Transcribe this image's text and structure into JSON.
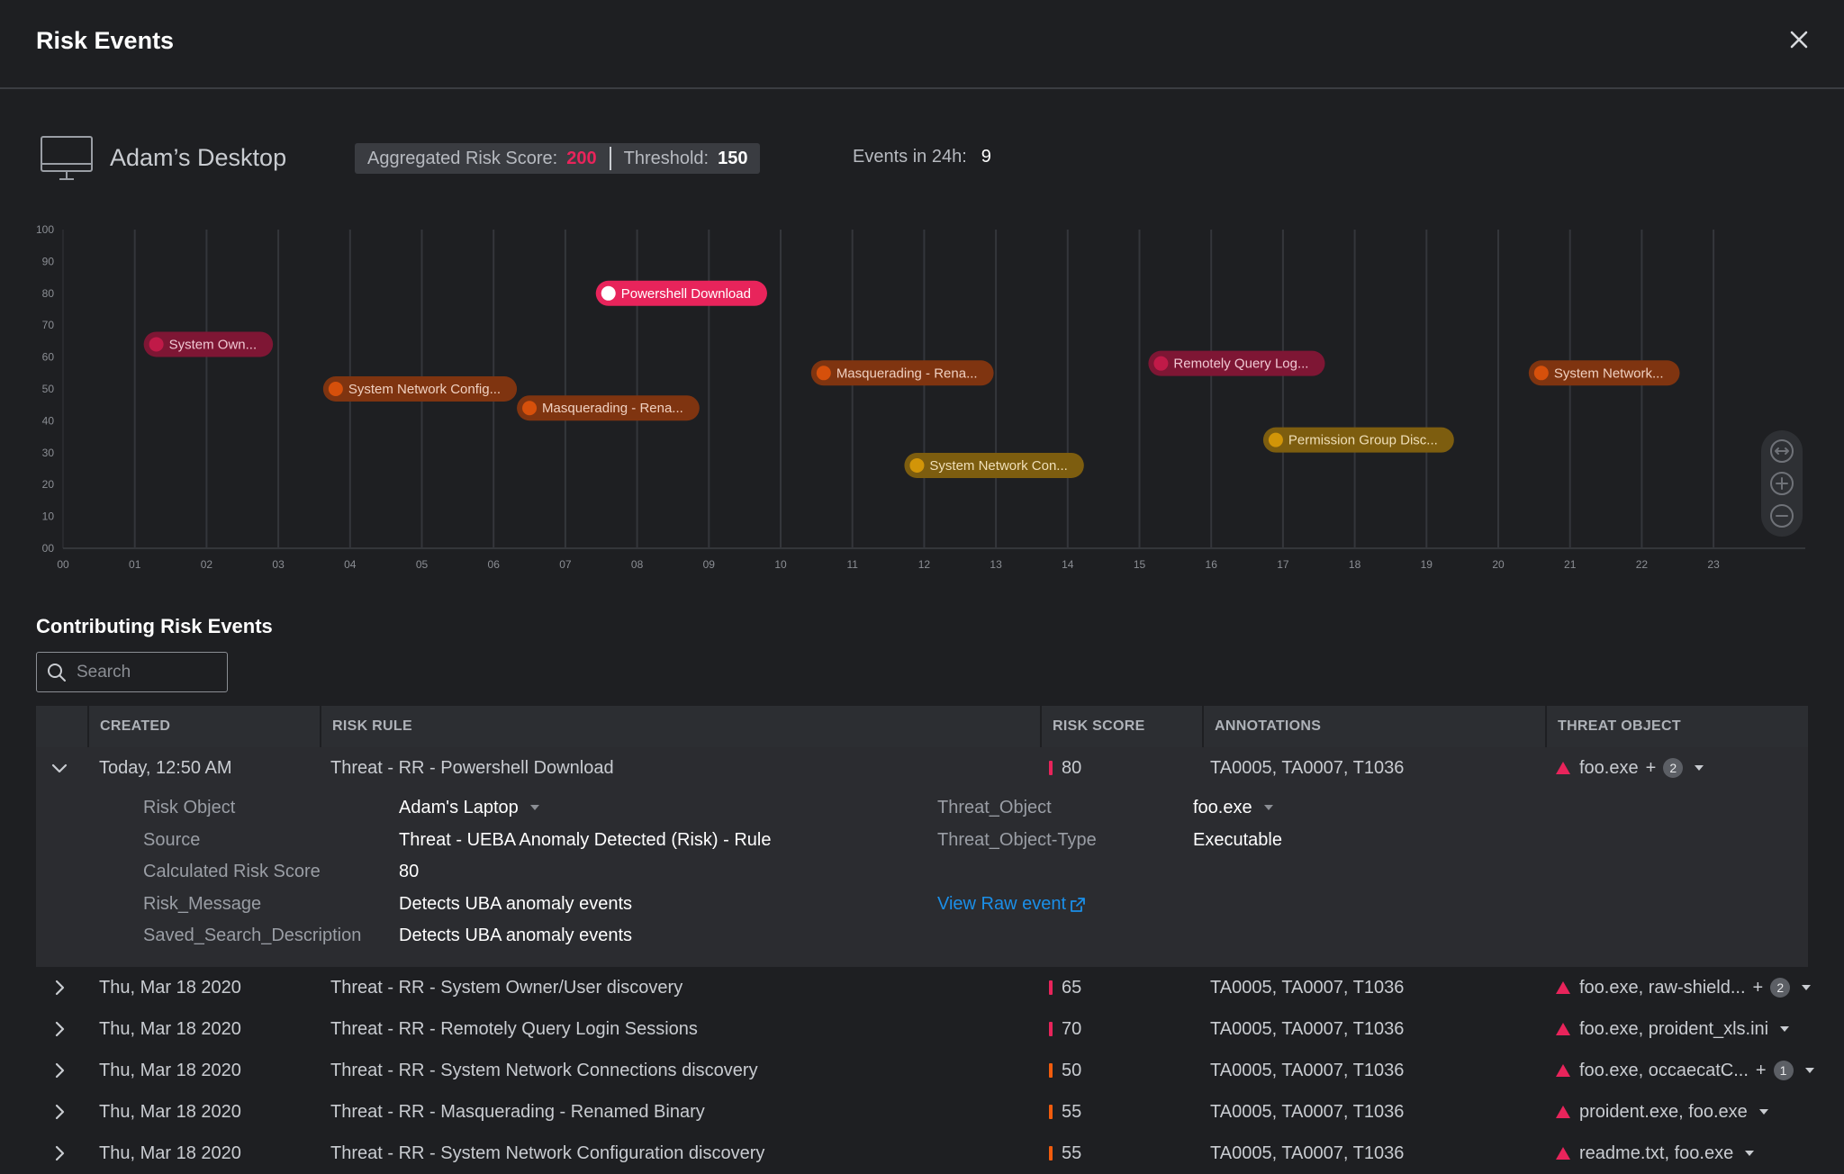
{
  "header": {
    "title": "Risk Events"
  },
  "asset": {
    "name": "Adam’s Desktop"
  },
  "score": {
    "aggregated_label": "Aggregated Risk Score:",
    "aggregated_value": "200",
    "threshold_label": "Threshold:",
    "threshold_value": "150",
    "events_label": "Events in 24h:",
    "events_value": "9"
  },
  "colors": {
    "critical": "#e8245b",
    "high": "#f25c0d",
    "medium": "#f5a70f",
    "link": "#1b8fe8"
  },
  "chart_data": {
    "type": "scatter",
    "x_ticks": [
      "00",
      "01",
      "02",
      "03",
      "04",
      "05",
      "06",
      "07",
      "08",
      "09",
      "10",
      "11",
      "12",
      "13",
      "14",
      "15",
      "16",
      "17",
      "18",
      "19",
      "20",
      "21",
      "22",
      "23"
    ],
    "y_ticks": [
      "00",
      "10",
      "20",
      "30",
      "40",
      "50",
      "60",
      "70",
      "80",
      "90",
      "100"
    ],
    "xlim": [
      0,
      24
    ],
    "ylim": [
      0,
      100
    ],
    "grid": true,
    "points": [
      {
        "label": "System Own...",
        "x": 1.3,
        "y": 64,
        "severity": "critical",
        "selected": false
      },
      {
        "label": "System Network Config...",
        "x": 3.8,
        "y": 50,
        "severity": "high",
        "selected": false
      },
      {
        "label": "Masquerading - Rena...",
        "x": 6.5,
        "y": 44,
        "severity": "high",
        "selected": false
      },
      {
        "label": "Powershell Download",
        "x": 7.6,
        "y": 80,
        "severity": "critical",
        "selected": true
      },
      {
        "label": "Masquerading - Rena...",
        "x": 10.6,
        "y": 55,
        "severity": "high",
        "selected": false
      },
      {
        "label": "System Network Con...",
        "x": 11.9,
        "y": 26,
        "severity": "medium",
        "selected": false
      },
      {
        "label": "Remotely Query Log...",
        "x": 15.3,
        "y": 58,
        "severity": "critical",
        "selected": false
      },
      {
        "label": "Permission Group Disc...",
        "x": 16.9,
        "y": 34,
        "severity": "medium",
        "selected": false
      },
      {
        "label": "System Network...",
        "x": 20.6,
        "y": 55,
        "severity": "high",
        "selected": false
      }
    ]
  },
  "section": {
    "title": "Contributing Risk Events",
    "search_placeholder": "Search"
  },
  "table": {
    "columns": [
      "CREATED",
      "RISK RULE",
      "RISK SCORE",
      "ANNOTATIONS",
      "THREAT OBJECT"
    ],
    "rows": [
      {
        "created": "Today, 12:50 AM",
        "rule": "Threat - RR - Powershell Download",
        "score": "80",
        "severity": "critical",
        "annotations": "TA0005, TA0007, T1036",
        "threat": "foo.exe",
        "plus": "+",
        "badge": "2"
      },
      {
        "created": "Thu, Mar 18 2020",
        "rule": "Threat - RR - System Owner/User discovery",
        "score": "65",
        "severity": "critical",
        "annotations": "TA0005, TA0007, T1036",
        "threat": "foo.exe, raw-shield...",
        "plus": "+",
        "badge": "2"
      },
      {
        "created": "Thu, Mar 18 2020",
        "rule": "Threat - RR - Remotely Query Login Sessions",
        "score": "70",
        "severity": "critical",
        "annotations": "TA0005, TA0007, T1036",
        "threat": "foo.exe, proident_xls.ini",
        "plus": "",
        "badge": ""
      },
      {
        "created": "Thu, Mar 18 2020",
        "rule": "Threat - RR - System Network Connections discovery",
        "score": "50",
        "severity": "high",
        "annotations": "TA0005, TA0007, T1036",
        "threat": "foo.exe, occaecatC...",
        "plus": "+",
        "badge": "1"
      },
      {
        "created": "Thu, Mar 18 2020",
        "rule": "Threat - RR - Masquerading - Renamed Binary",
        "score": "55",
        "severity": "high",
        "annotations": "TA0005, TA0007, T1036",
        "threat": "proident.exe, foo.exe",
        "plus": "",
        "badge": ""
      },
      {
        "created": "Thu, Mar 18 2020",
        "rule": "Threat - RR - System Network Configuration discovery",
        "score": "55",
        "severity": "high",
        "annotations": "TA0005, TA0007, T1036",
        "threat": "readme.txt, foo.exe",
        "plus": "",
        "badge": ""
      }
    ],
    "details": {
      "risk_object_label": "Risk Object",
      "risk_object_value": "Adam's Laptop",
      "source_label": "Source",
      "source_value": "Threat - UEBA Anomaly Detected (Risk) - Rule",
      "calc_label": "Calculated Risk Score",
      "calc_value": "80",
      "message_label": "Risk_Message",
      "message_value": "Detects UBA anomaly events",
      "saved_label": "Saved_Search_Description",
      "saved_value": "Detects UBA anomaly events",
      "threat_object_label": "Threat_Object",
      "threat_object_value": "foo.exe",
      "threat_type_label": "Threat_Object-Type",
      "threat_type_value": "Executable",
      "view_raw_label": "View Raw event"
    }
  }
}
